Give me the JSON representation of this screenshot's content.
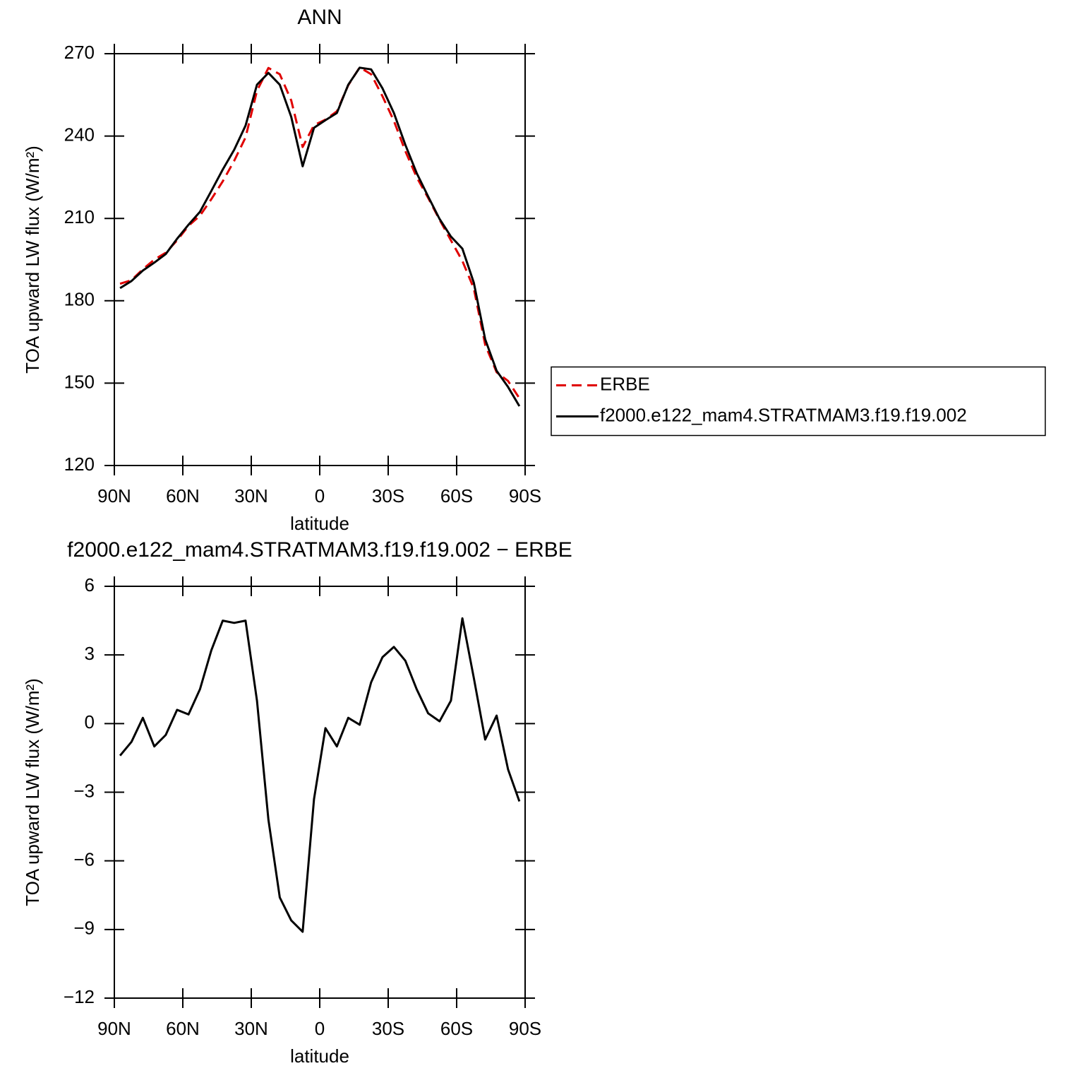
{
  "chart_data": [
    {
      "type": "line",
      "title": "ANN",
      "xlabel": "latitude",
      "ylabel": "TOA upward LW flux (W/m²)",
      "x": [
        87.5,
        82.5,
        77.5,
        72.5,
        67.5,
        62.5,
        57.5,
        52.5,
        47.5,
        42.5,
        37.5,
        32.5,
        27.5,
        22.5,
        17.5,
        12.5,
        7.5,
        2.5,
        -2.5,
        -7.5,
        -12.5,
        -17.5,
        -22.5,
        -27.5,
        -32.5,
        -37.5,
        -42.5,
        -47.5,
        -52.5,
        -57.5,
        -62.5,
        -67.5,
        -72.5,
        -77.5,
        -82.5,
        -87.5
      ],
      "series": [
        {
          "name": "ERBE",
          "color": "#e00000",
          "dashed": true,
          "values": [
            186.2,
            187.5,
            191.5,
            195,
            197.5,
            202,
            207.3,
            211,
            217,
            223.5,
            231,
            239.5,
            256.5,
            264.8,
            262.5,
            253,
            236,
            244,
            246,
            249,
            258.5,
            265,
            262.5,
            254.5,
            245.5,
            234.5,
            225,
            217.5,
            209.5,
            202,
            194.5,
            184.5,
            164,
            154,
            150.8,
            144.5
          ]
        },
        {
          "name": "f2000.e122_mam4.STRATMAM3.f19.f19.002",
          "color": "#000000",
          "dashed": false,
          "values": [
            184.6,
            187.2,
            191,
            193.9,
            197,
            202.6,
            207.7,
            212.4,
            220,
            227.8,
            235,
            243.8,
            258.7,
            263,
            258.7,
            247,
            229,
            243,
            245.8,
            248.4,
            258.7,
            264.9,
            264.3,
            257.4,
            248.4,
            236.8,
            226.5,
            218,
            209.8,
            203.4,
            199,
            186.6,
            166,
            154.5,
            148.6,
            141.6
          ]
        }
      ],
      "xlim": [
        90,
        -90
      ],
      "xticks": [
        {
          "value": 90,
          "label": "90N"
        },
        {
          "value": 60,
          "label": "60N"
        },
        {
          "value": 30,
          "label": "30N"
        },
        0,
        {
          "value": -30,
          "label": "30S"
        },
        {
          "value": -60,
          "label": "60S"
        },
        {
          "value": -90,
          "label": "90S"
        }
      ],
      "ylim": [
        120,
        270
      ],
      "yticks": [
        120,
        150,
        180,
        210,
        240,
        270
      ],
      "legend": "right"
    },
    {
      "type": "line",
      "title": "f2000.e122_mam4.STRATMAM3.f19.f19.002 − ERBE",
      "xlabel": "latitude",
      "ylabel": "TOA upward LW flux (W/m²)",
      "x": [
        87.5,
        82.5,
        77.5,
        72.5,
        67.5,
        62.5,
        57.5,
        52.5,
        47.5,
        42.5,
        37.5,
        32.5,
        27.5,
        22.5,
        17.5,
        12.5,
        7.5,
        2.5,
        -2.5,
        -7.5,
        -12.5,
        -17.5,
        -22.5,
        -27.5,
        -32.5,
        -37.5,
        -42.5,
        -47.5,
        -52.5,
        -57.5,
        -62.5,
        -67.5,
        -72.5,
        -77.5,
        -82.5,
        -87.5
      ],
      "series": [
        {
          "color": "#000000",
          "dashed": false,
          "values": [
            -1.4,
            -0.8,
            0.25,
            -1.0,
            -0.5,
            0.6,
            0.4,
            1.5,
            3.2,
            4.5,
            4.4,
            4.5,
            1.0,
            -4.2,
            -7.6,
            -8.6,
            -9.1,
            -3.3,
            -0.2,
            -1.0,
            0.25,
            -0.05,
            1.8,
            2.9,
            3.35,
            2.75,
            1.5,
            0.45,
            0.1,
            1.0,
            4.6,
            2.0,
            -0.7,
            0.35,
            -2.0,
            -3.4
          ]
        }
      ],
      "xlim": [
        90,
        -90
      ],
      "xticks": [
        {
          "value": 90,
          "label": "90N"
        },
        {
          "value": 60,
          "label": "60N"
        },
        {
          "value": 30,
          "label": "30N"
        },
        0,
        {
          "value": -30,
          "label": "30S"
        },
        {
          "value": -60,
          "label": "60S"
        },
        {
          "value": -90,
          "label": "90S"
        }
      ],
      "ylim": [
        -12,
        6
      ],
      "yticks": [
        {
          "value": -12,
          "label": "−12"
        },
        {
          "value": -9,
          "label": "−9"
        },
        {
          "value": -6,
          "label": "−6"
        },
        {
          "value": -3,
          "label": "−3"
        },
        0,
        3,
        6
      ]
    }
  ]
}
